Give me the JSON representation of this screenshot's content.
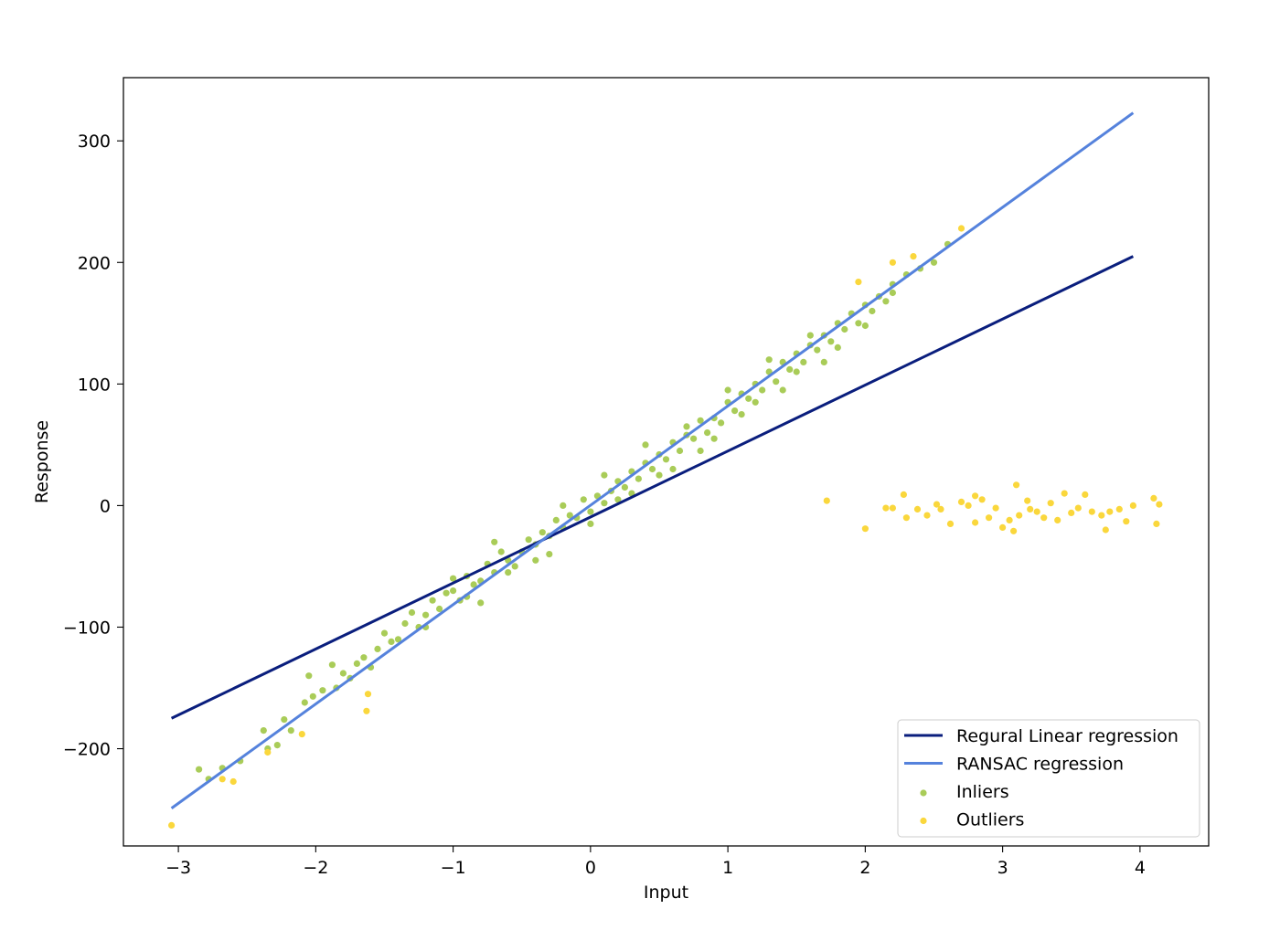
{
  "chart_data": {
    "type": "scatter",
    "title": "",
    "xlabel": "Input",
    "ylabel": "Response",
    "xlim": [
      -3.4,
      4.5
    ],
    "ylim": [
      -280,
      352
    ],
    "xticks": [
      {
        "value": -3,
        "label": "−3"
      },
      {
        "value": -2,
        "label": "−2"
      },
      {
        "value": -1,
        "label": "−1"
      },
      {
        "value": 0,
        "label": "0"
      },
      {
        "value": 1,
        "label": "1"
      },
      {
        "value": 2,
        "label": "2"
      },
      {
        "value": 3,
        "label": "3"
      },
      {
        "value": 4,
        "label": "4"
      }
    ],
    "yticks": [
      {
        "value": -200,
        "label": "−200"
      },
      {
        "value": -100,
        "label": "−100"
      },
      {
        "value": 0,
        "label": "0"
      },
      {
        "value": 100,
        "label": "100"
      },
      {
        "value": 200,
        "label": "200"
      },
      {
        "value": 300,
        "label": "300"
      }
    ],
    "grid": false,
    "legend_position": "lower-right",
    "lines": [
      {
        "name": "Regural Linear regression",
        "color": "#0a1e7d",
        "x": [
          -3.05,
          3.95
        ],
        "y": [
          -175,
          205
        ]
      },
      {
        "name": "RANSAC regression",
        "color": "#5582dc",
        "x": [
          -3.05,
          3.95
        ],
        "y": [
          -249,
          323
        ]
      }
    ],
    "inliers": {
      "name": "Inliers",
      "color": "#a9cc58",
      "points": [
        [
          -2.85,
          -217
        ],
        [
          -2.78,
          -225
        ],
        [
          -2.68,
          -216
        ],
        [
          -2.55,
          -210
        ],
        [
          -2.38,
          -185
        ],
        [
          -2.35,
          -200
        ],
        [
          -2.28,
          -197
        ],
        [
          -2.23,
          -176
        ],
        [
          -2.18,
          -185
        ],
        [
          -2.08,
          -162
        ],
        [
          -2.05,
          -140
        ],
        [
          -2.02,
          -157
        ],
        [
          -1.95,
          -152
        ],
        [
          -1.88,
          -131
        ],
        [
          -1.85,
          -150
        ],
        [
          -1.8,
          -138
        ],
        [
          -1.75,
          -142
        ],
        [
          -1.7,
          -130
        ],
        [
          -1.65,
          -125
        ],
        [
          -1.6,
          -133
        ],
        [
          -1.55,
          -118
        ],
        [
          -1.5,
          -105
        ],
        [
          -1.45,
          -112
        ],
        [
          -1.4,
          -110
        ],
        [
          -1.35,
          -97
        ],
        [
          -1.3,
          -88
        ],
        [
          -1.25,
          -100
        ],
        [
          -1.2,
          -90
        ],
        [
          -1.15,
          -78
        ],
        [
          -1.1,
          -85
        ],
        [
          -1.05,
          -72
        ],
        [
          -1.0,
          -70
        ],
        [
          -0.95,
          -78
        ],
        [
          -0.9,
          -58
        ],
        [
          -0.85,
          -65
        ],
        [
          -0.8,
          -62
        ],
        [
          -0.75,
          -48
        ],
        [
          -0.7,
          -55
        ],
        [
          -0.65,
          -38
        ],
        [
          -0.6,
          -45
        ],
        [
          -0.55,
          -50
        ],
        [
          -0.5,
          -38
        ],
        [
          -0.45,
          -28
        ],
        [
          -0.4,
          -32
        ],
        [
          -0.35,
          -22
        ],
        [
          -0.3,
          -25
        ],
        [
          -0.25,
          -12
        ],
        [
          -0.2,
          -18
        ],
        [
          -0.15,
          -8
        ],
        [
          -0.1,
          -10
        ],
        [
          -0.05,
          5
        ],
        [
          0.0,
          -5
        ],
        [
          0.05,
          8
        ],
        [
          0.1,
          2
        ],
        [
          0.15,
          12
        ],
        [
          0.2,
          20
        ],
        [
          0.25,
          15
        ],
        [
          0.3,
          28
        ],
        [
          0.35,
          22
        ],
        [
          0.4,
          35
        ],
        [
          0.45,
          30
        ],
        [
          0.5,
          42
        ],
        [
          0.55,
          38
        ],
        [
          0.6,
          52
        ],
        [
          0.65,
          45
        ],
        [
          0.7,
          58
        ],
        [
          0.75,
          55
        ],
        [
          0.8,
          70
        ],
        [
          0.85,
          60
        ],
        [
          0.9,
          72
        ],
        [
          0.95,
          68
        ],
        [
          1.0,
          85
        ],
        [
          1.05,
          78
        ],
        [
          1.1,
          92
        ],
        [
          1.15,
          88
        ],
        [
          1.2,
          100
        ],
        [
          1.25,
          95
        ],
        [
          1.3,
          110
        ],
        [
          1.35,
          102
        ],
        [
          1.4,
          118
        ],
        [
          1.45,
          112
        ],
        [
          1.5,
          125
        ],
        [
          1.55,
          118
        ],
        [
          1.6,
          132
        ],
        [
          1.65,
          128
        ],
        [
          1.7,
          140
        ],
        [
          1.75,
          135
        ],
        [
          1.8,
          150
        ],
        [
          1.85,
          145
        ],
        [
          1.9,
          158
        ],
        [
          1.95,
          150
        ],
        [
          2.0,
          165
        ],
        [
          2.05,
          160
        ],
        [
          2.1,
          172
        ],
        [
          2.15,
          168
        ],
        [
          2.2,
          182
        ],
        [
          2.3,
          190
        ],
        [
          2.4,
          195
        ],
        [
          2.5,
          200
        ],
        [
          2.6,
          215
        ],
        [
          -0.9,
          -75
        ],
        [
          -0.6,
          -55
        ],
        [
          -0.3,
          -40
        ],
        [
          0.0,
          -15
        ],
        [
          0.3,
          10
        ],
        [
          0.6,
          30
        ],
        [
          0.9,
          55
        ],
        [
          1.2,
          85
        ],
        [
          1.5,
          110
        ],
        [
          1.8,
          130
        ],
        [
          -1.2,
          -100
        ],
        [
          -0.8,
          -80
        ],
        [
          -0.4,
          -45
        ],
        [
          0.2,
          5
        ],
        [
          0.5,
          25
        ],
        [
          0.8,
          45
        ],
        [
          1.1,
          75
        ],
        [
          1.4,
          95
        ],
        [
          1.7,
          118
        ],
        [
          2.0,
          148
        ],
        [
          -1.0,
          -60
        ],
        [
          -0.7,
          -30
        ],
        [
          -0.2,
          0
        ],
        [
          0.1,
          25
        ],
        [
          0.4,
          50
        ],
        [
          0.7,
          65
        ],
        [
          1.0,
          95
        ],
        [
          1.3,
          120
        ],
        [
          1.6,
          140
        ],
        [
          2.2,
          175
        ]
      ]
    },
    "outliers": {
      "name": "Outliers",
      "color": "#fad73c",
      "points": [
        [
          -3.05,
          -263
        ],
        [
          -2.68,
          -225
        ],
        [
          -2.6,
          -227
        ],
        [
          -2.35,
          -203
        ],
        [
          -2.1,
          -188
        ],
        [
          -1.63,
          -169
        ],
        [
          -1.62,
          -155
        ],
        [
          1.72,
          4
        ],
        [
          1.95,
          184
        ],
        [
          2.0,
          -19
        ],
        [
          2.15,
          -2
        ],
        [
          2.2,
          -2
        ],
        [
          2.28,
          9
        ],
        [
          2.3,
          -10
        ],
        [
          2.35,
          205
        ],
        [
          2.38,
          -3
        ],
        [
          2.45,
          -8
        ],
        [
          2.52,
          1
        ],
        [
          2.55,
          -3
        ],
        [
          2.62,
          -15
        ],
        [
          2.7,
          3
        ],
        [
          2.75,
          0
        ],
        [
          2.8,
          8
        ],
        [
          2.8,
          -14
        ],
        [
          2.85,
          5
        ],
        [
          2.9,
          -10
        ],
        [
          2.95,
          -2
        ],
        [
          3.0,
          -18
        ],
        [
          3.05,
          -12
        ],
        [
          3.08,
          -21
        ],
        [
          3.1,
          17
        ],
        [
          3.12,
          -8
        ],
        [
          3.18,
          4
        ],
        [
          3.2,
          -3
        ],
        [
          3.25,
          -5
        ],
        [
          3.3,
          -10
        ],
        [
          3.35,
          2
        ],
        [
          3.4,
          -12
        ],
        [
          3.45,
          10
        ],
        [
          3.5,
          -6
        ],
        [
          3.55,
          -2
        ],
        [
          3.6,
          9
        ],
        [
          3.65,
          -5
        ],
        [
          3.72,
          -8
        ],
        [
          3.75,
          -20
        ],
        [
          3.78,
          -5
        ],
        [
          3.85,
          -3
        ],
        [
          3.9,
          -13
        ],
        [
          3.95,
          0
        ],
        [
          4.1,
          6
        ],
        [
          4.12,
          -15
        ],
        [
          4.14,
          1
        ],
        [
          2.2,
          200
        ],
        [
          2.7,
          228
        ]
      ]
    }
  }
}
